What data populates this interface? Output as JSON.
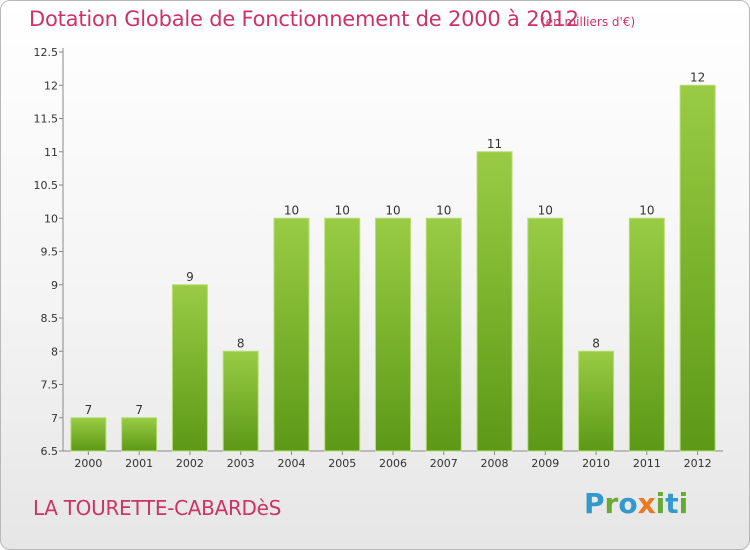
{
  "title": "Dotation Globale de Fonctionnement de 2000 à 2012",
  "subtitle": "(en milliers d'€)",
  "commune": "LA TOURETTE-CABARDèS",
  "logo": {
    "letters": [
      {
        "char": "P",
        "color": "#3399cc"
      },
      {
        "char": "r",
        "color": "#66aa33"
      },
      {
        "char": "o",
        "color": "#3399cc"
      },
      {
        "char": "x",
        "color": "#ee7722"
      },
      {
        "char": "i",
        "color": "#66aa33"
      },
      {
        "char": "t",
        "color": "#3399cc"
      },
      {
        "char": "i",
        "color": "#66aa33"
      }
    ]
  },
  "colors": {
    "accent": "#cc3366",
    "bar_light": "#99cc44",
    "bar_dark": "#5c9916"
  },
  "chart_data": {
    "type": "bar",
    "title": "Dotation Globale de Fonctionnement de 2000 à 2012",
    "subtitle": "(en milliers d'€)",
    "categories": [
      "2000",
      "2001",
      "2002",
      "2003",
      "2004",
      "2005",
      "2006",
      "2007",
      "2008",
      "2009",
      "2010",
      "2011",
      "2012"
    ],
    "values": [
      7,
      7,
      9,
      8,
      10,
      10,
      10,
      10,
      11,
      10,
      8,
      10,
      12
    ],
    "data_labels": [
      "7",
      "7",
      "9",
      "8",
      "10",
      "10",
      "10",
      "10",
      "11",
      "10",
      "8",
      "10",
      "12"
    ],
    "ylim": [
      6.5,
      12.5
    ],
    "yticks": [
      "6.5",
      "7",
      "7.5",
      "8",
      "8.5",
      "9",
      "9.5",
      "10",
      "10.5",
      "11",
      "11.5",
      "12",
      "12.5"
    ],
    "xlabel": "",
    "ylabel": "",
    "grid": false,
    "legend": "none"
  }
}
